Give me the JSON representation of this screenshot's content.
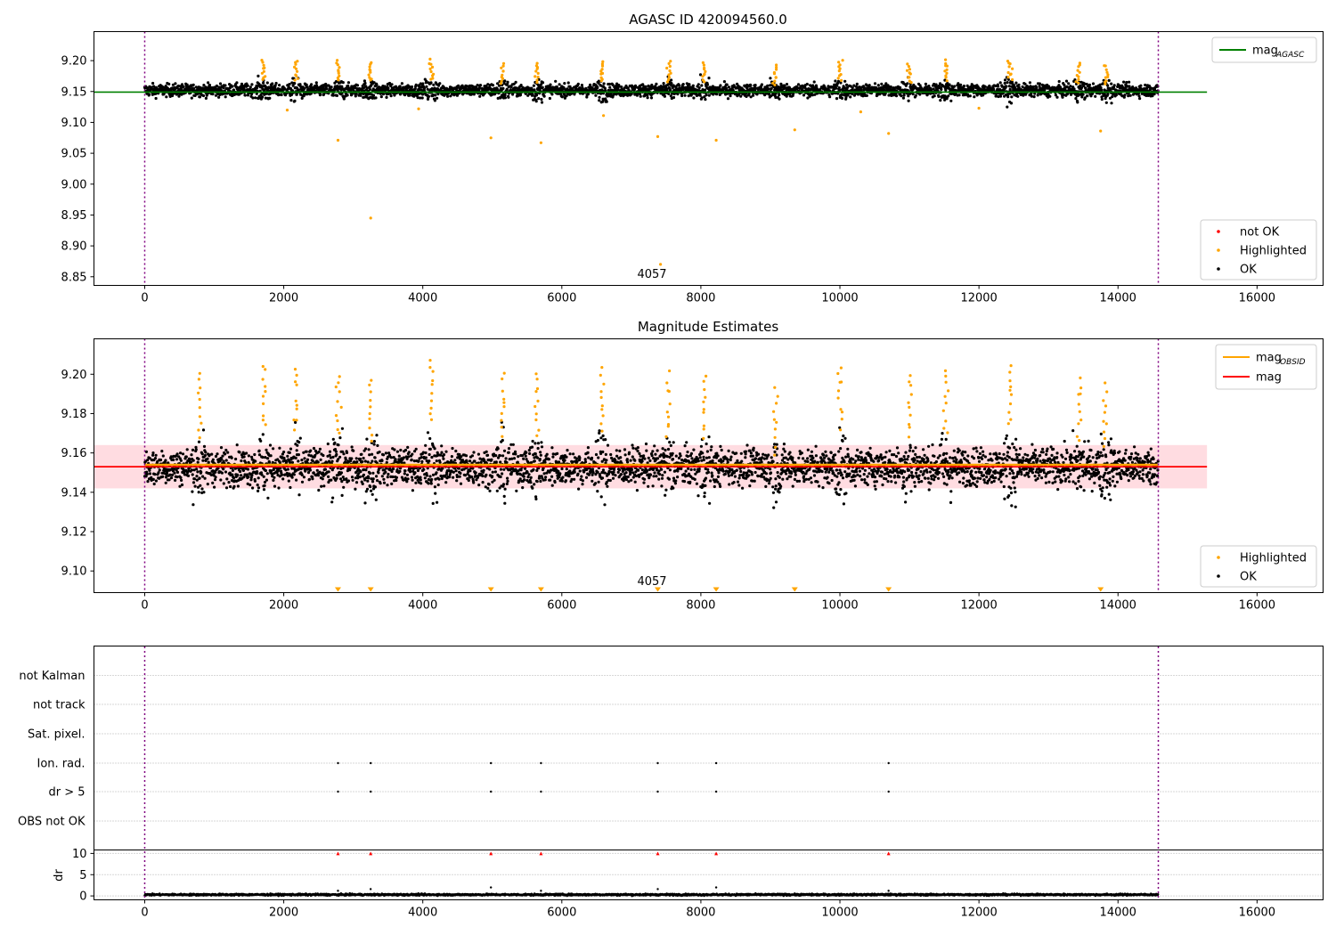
{
  "chart_data": [
    {
      "type": "scatter",
      "title": "AGASC ID 420094560.0",
      "xlabel": "",
      "ylabel": "",
      "xlim": [
        -730,
        16950
      ],
      "ylim": [
        8.836,
        9.247
      ],
      "x_ticks": [
        "0",
        "2000",
        "4000",
        "6000",
        "8000",
        "10000",
        "12000",
        "14000",
        "16000"
      ],
      "y_ticks": [
        "8.85",
        "8.90",
        "8.95",
        "9.00",
        "9.05",
        "9.10",
        "9.15",
        "9.20"
      ],
      "obs_boundaries": [
        0,
        14580
      ],
      "annotation": "4057",
      "legend_lines": [
        {
          "label_main": "mag",
          "label_sub": "AGASC",
          "color": "#008000",
          "position": "upper right"
        }
      ],
      "legend_points": [
        {
          "label": "not OK",
          "color": "#ff0000"
        },
        {
          "label": "Highlighted",
          "color": "#ffa500"
        },
        {
          "label": "OK",
          "color": "#000000"
        }
      ],
      "series": [
        {
          "name": "mag_AGASC",
          "kind": "hline",
          "y": 9.149,
          "x_range": [
            -730,
            15280
          ],
          "color": "#008000"
        },
        {
          "name": "OK",
          "color": "#000000",
          "x_range": [
            0,
            14580
          ],
          "y_center": 9.152,
          "y_spread": 0.013,
          "count": 14580
        },
        {
          "name": "Highlighted",
          "color": "#ffa500",
          "x": [
            1710,
            2180,
            2780,
            3250,
            4120,
            5150,
            5640,
            6580,
            7540,
            8050,
            9070,
            10000,
            11000,
            11520,
            12450,
            13440,
            13820
          ],
          "y": [
            9.2,
            9.2,
            9.2,
            9.198,
            9.2,
            9.195,
            9.196,
            9.198,
            9.198,
            9.197,
            9.192,
            9.2,
            9.195,
            9.2,
            9.2,
            9.195,
            9.193
          ]
        },
        {
          "name": "Highlighted outliers",
          "x": [
            2780,
            3250,
            4980,
            5700,
            6600,
            7380,
            7420,
            8220,
            9350,
            10700,
            13750,
            2050,
            3940,
            10300,
            12000
          ],
          "y": [
            9.071,
            8.945,
            9.075,
            9.067,
            9.111,
            9.077,
            8.87,
            9.071,
            9.088,
            9.082,
            9.086,
            9.12,
            9.122,
            9.117,
            9.123
          ]
        }
      ]
    },
    {
      "type": "scatter",
      "title": "Magnitude Estimates",
      "xlabel": "",
      "ylabel": "",
      "xlim": [
        -730,
        16950
      ],
      "ylim": [
        9.089,
        9.218
      ],
      "x_ticks": [
        "0",
        "2000",
        "4000",
        "6000",
        "8000",
        "10000",
        "12000",
        "14000",
        "16000"
      ],
      "y_ticks": [
        "9.10",
        "9.12",
        "9.14",
        "9.16",
        "9.18",
        "9.20"
      ],
      "obs_boundaries": [
        0,
        14580
      ],
      "annotation": "4057",
      "legend_lines": [
        {
          "label_main": "mag",
          "label_sub": "OBSID",
          "color": "#ffa500"
        },
        {
          "label_main": "mag",
          "label_sub": "",
          "color": "#ff0000"
        }
      ],
      "legend_points": [
        {
          "label": "Highlighted",
          "color": "#ffa500"
        },
        {
          "label": "OK",
          "color": "#000000"
        }
      ],
      "band": {
        "y_low": 9.142,
        "y_high": 9.164,
        "x_range": [
          -730,
          15280
        ]
      },
      "series": [
        {
          "name": "mag",
          "kind": "hline",
          "y": 9.153,
          "x_range": [
            -730,
            15280
          ],
          "color": "#ff0000"
        },
        {
          "name": "mag_OBSID",
          "kind": "hline",
          "y": 9.154,
          "x_range": [
            0,
            14580
          ],
          "color": "#ffa500"
        },
        {
          "name": "OK",
          "color": "#000000",
          "x_range": [
            0,
            14580
          ],
          "y_center": 9.153,
          "y_spread": 0.012,
          "count": 14580
        },
        {
          "name": "Highlighted",
          "color": "#ffa500",
          "x": [
            780,
            1710,
            2180,
            2780,
            3250,
            4120,
            5150,
            5640,
            6580,
            7540,
            8050,
            9070,
            10000,
            11000,
            11520,
            12450,
            13440,
            13820
          ],
          "y": [
            9.2,
            9.205,
            9.203,
            9.2,
            9.198,
            9.208,
            9.2,
            9.2,
            9.203,
            9.2,
            9.2,
            9.192,
            9.205,
            9.2,
            9.202,
            9.205,
            9.198,
            9.195
          ]
        },
        {
          "name": "below-range markers",
          "color": "#ffa500",
          "x": [
            2780,
            3250,
            4980,
            5700,
            7380,
            8220,
            9350,
            10700,
            13750
          ]
        }
      ]
    },
    {
      "type": "scatter",
      "title": "",
      "xlabel": "",
      "ylabel": "dr",
      "xlim": [
        -730,
        16950
      ],
      "x_ticks": [
        "0",
        "2000",
        "4000",
        "6000",
        "8000",
        "10000",
        "12000",
        "14000",
        "16000"
      ],
      "flag_rows": [
        "not Kalman",
        "not track",
        "Sat. pixel.",
        "Ion. rad.",
        "dr > 5",
        "OBS not OK"
      ],
      "flag_points": {
        "Ion. rad.": [
          2780,
          3250,
          4980,
          5700,
          7380,
          8220,
          10700
        ],
        "dr > 5": [
          2780,
          3250,
          4980,
          5700,
          7380,
          8220,
          10700
        ]
      },
      "dr_ylim": [
        -0.5,
        10.5
      ],
      "dr_ticks": [
        "0",
        "5",
        "10"
      ],
      "dr_clipped_x": [
        2780,
        3250,
        4980,
        5700,
        7380,
        8220,
        10700
      ],
      "dr_series": {
        "x_range": [
          0,
          14580
        ],
        "y_center": 0.3,
        "y_spread": 0.15
      },
      "obs_boundaries": [
        0,
        14580
      ]
    }
  ]
}
